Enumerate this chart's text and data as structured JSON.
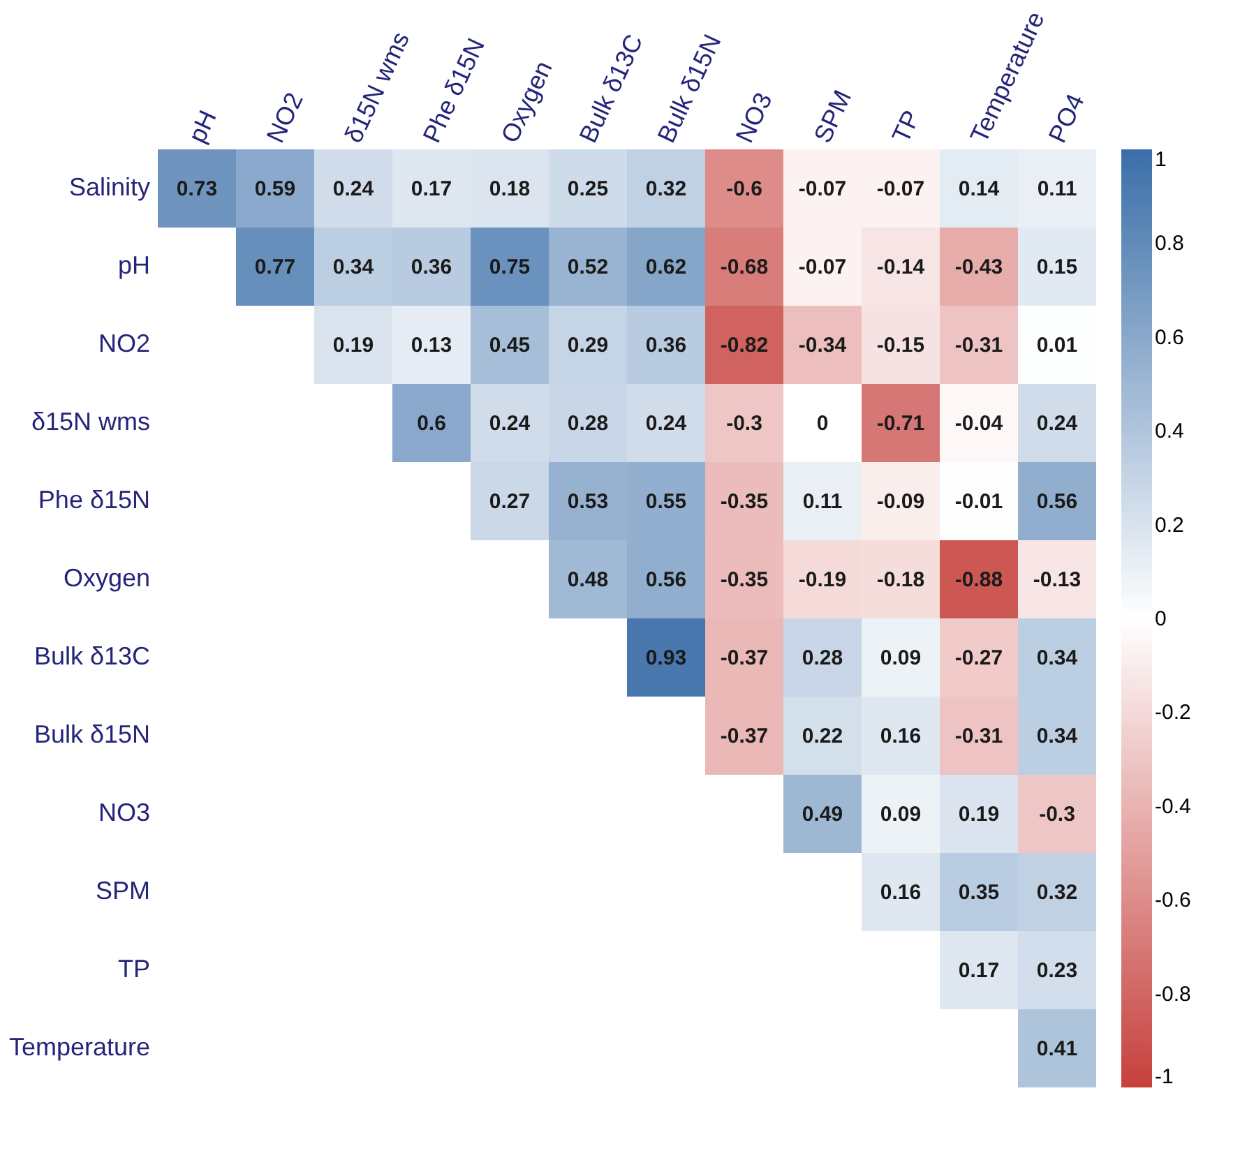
{
  "chart_data": {
    "type": "heatmap",
    "categories": [
      "pH",
      "NO2",
      "δ15N wms",
      "Phe δ15N",
      "Oxygen",
      "Bulk δ13C",
      "Bulk δ15N",
      "NO3",
      "SPM",
      "TP",
      "Temperature",
      "PO4"
    ],
    "y_categories": [
      "Salinity",
      "pH",
      "NO2",
      "δ15N wms",
      "Phe δ15N",
      "Oxygen",
      "Bulk δ13C",
      "Bulk δ15N",
      "NO3",
      "SPM",
      "TP",
      "Temperature"
    ],
    "cells": [
      [
        0.73,
        0.59,
        0.24,
        0.17,
        0.18,
        0.25,
        0.32,
        -0.6,
        -0.07,
        -0.07,
        0.14,
        0.11
      ],
      [
        null,
        0.77,
        0.34,
        0.36,
        0.75,
        0.52,
        0.62,
        -0.68,
        -0.07,
        -0.14,
        -0.43,
        0.15
      ],
      [
        null,
        null,
        0.19,
        0.13,
        0.45,
        0.29,
        0.36,
        -0.82,
        -0.34,
        -0.15,
        -0.31,
        0.01
      ],
      [
        null,
        null,
        null,
        0.6,
        0.24,
        0.28,
        0.24,
        -0.3,
        0,
        -0.71,
        -0.04,
        0.24
      ],
      [
        null,
        null,
        null,
        null,
        0.27,
        0.53,
        0.55,
        -0.35,
        0.11,
        -0.09,
        -0.01,
        0.56
      ],
      [
        null,
        null,
        null,
        null,
        null,
        0.48,
        0.56,
        -0.35,
        -0.19,
        -0.18,
        -0.88,
        -0.13
      ],
      [
        null,
        null,
        null,
        null,
        null,
        null,
        0.93,
        -0.37,
        0.28,
        0.09,
        -0.27,
        0.34
      ],
      [
        null,
        null,
        null,
        null,
        null,
        null,
        null,
        -0.37,
        0.22,
        0.16,
        -0.31,
        0.34
      ],
      [
        null,
        null,
        null,
        null,
        null,
        null,
        null,
        null,
        0.49,
        0.09,
        0.19,
        -0.3
      ],
      [
        null,
        null,
        null,
        null,
        null,
        null,
        null,
        null,
        null,
        0.16,
        0.35,
        0.32
      ],
      [
        null,
        null,
        null,
        null,
        null,
        null,
        null,
        null,
        null,
        null,
        0.17,
        0.23
      ],
      [
        null,
        null,
        null,
        null,
        null,
        null,
        null,
        null,
        null,
        null,
        null,
        0.41
      ]
    ],
    "data_labels": true,
    "clim": [
      -1,
      1
    ],
    "cticks": [
      -1,
      -0.8,
      -0.6,
      -0.4,
      -0.2,
      0,
      0.2,
      0.4,
      0.6,
      0.8,
      1
    ]
  }
}
